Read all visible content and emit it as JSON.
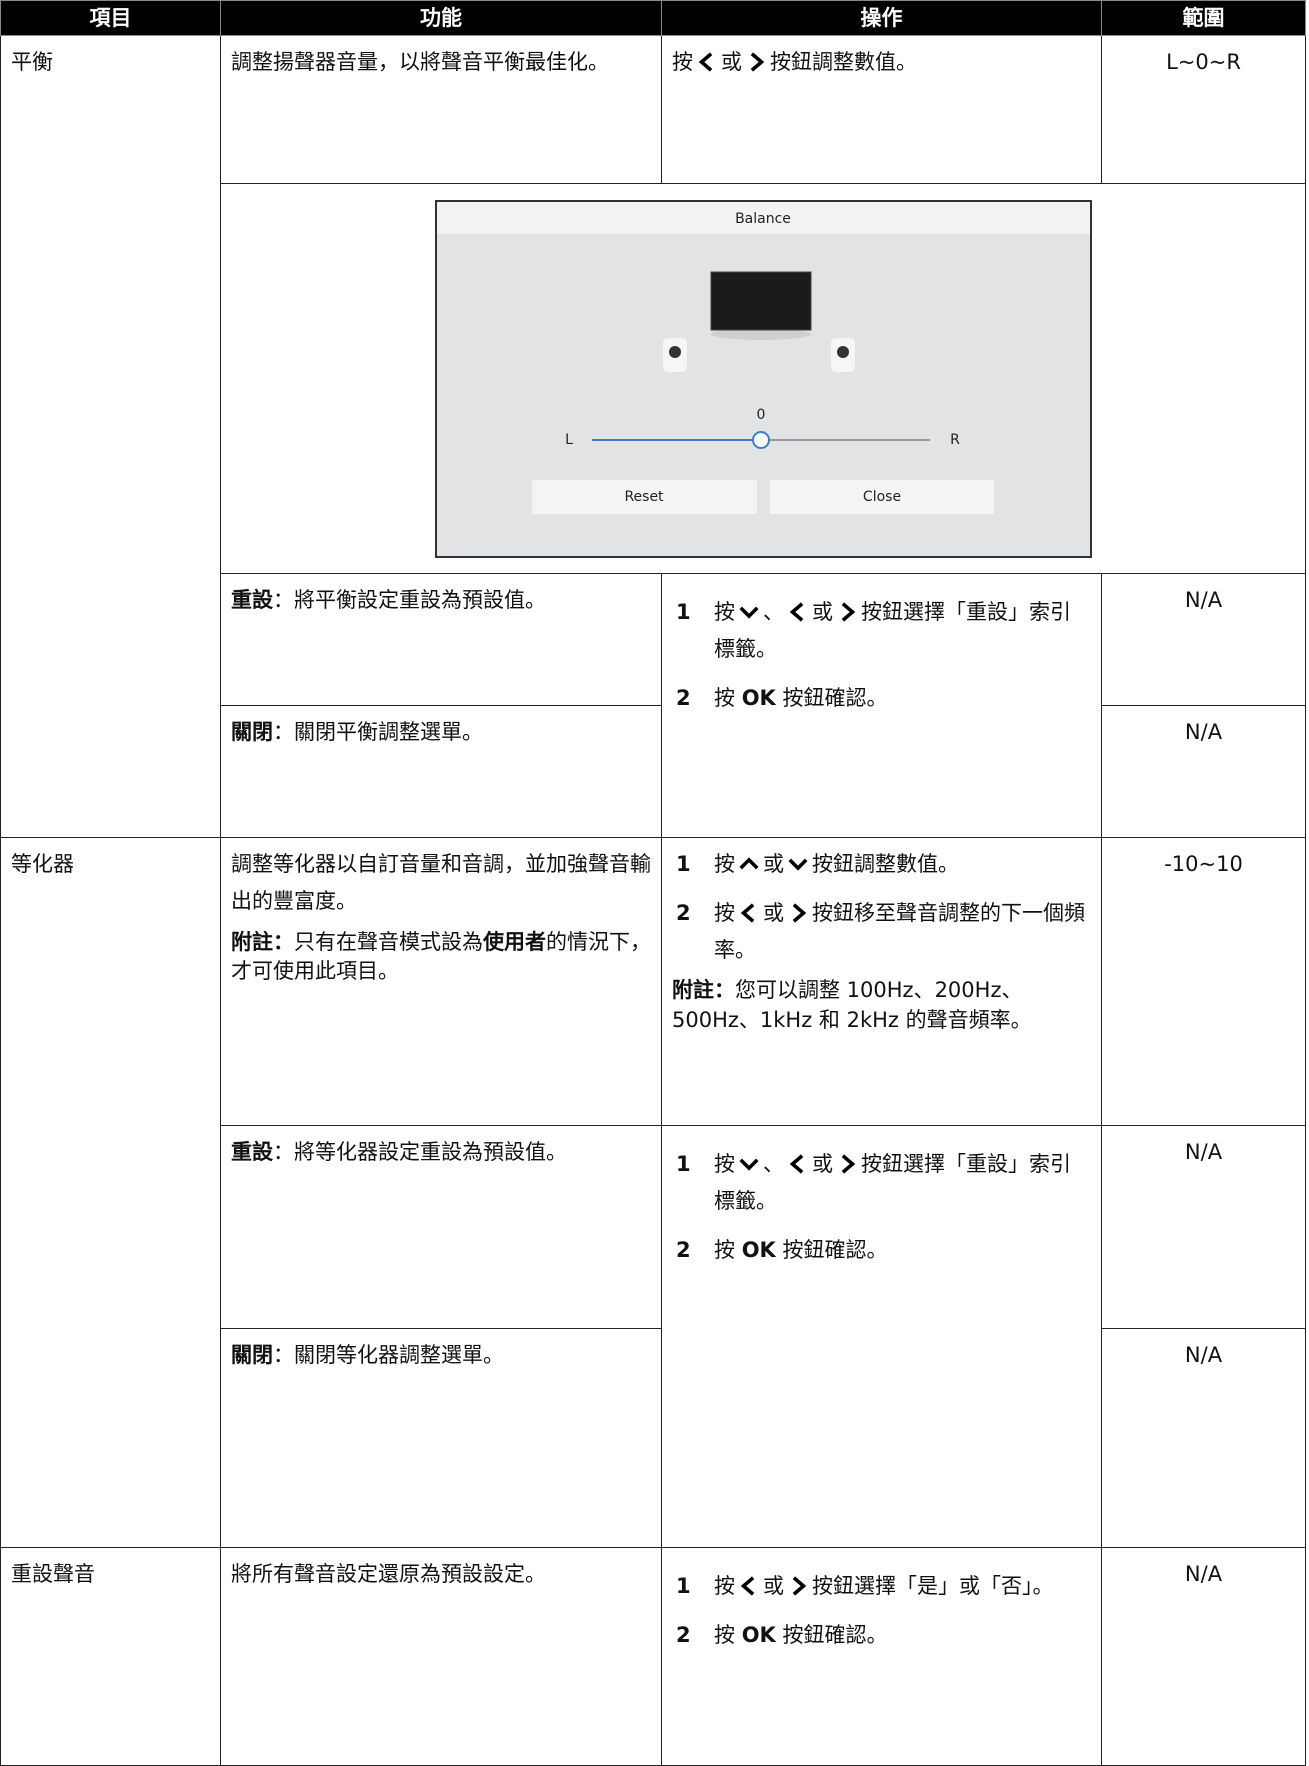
{
  "header": {
    "item": "項目",
    "function": "功能",
    "operation": "操作",
    "range": "範圍"
  },
  "balance": {
    "item": "平衡",
    "function": "調整揚聲器音量，以將聲音平衡最佳化。",
    "operation": [
      "按",
      "或",
      "按鈕調整數值。"
    ],
    "range": "L~0~R",
    "dialog": {
      "title": "Balance",
      "value": 0,
      "left": "L",
      "right": "R",
      "reset": "Reset",
      "close": "Close"
    },
    "reset": {
      "label": "重設",
      "text": "：將平衡設定重設為預設值。",
      "range": "N/A"
    },
    "close": {
      "label": "關閉",
      "text": "：關閉平衡調整選單。",
      "range": "N/A"
    },
    "steps": [
      {
        "number": "1",
        "parts": [
          "按",
          "、",
          "或",
          "按鈕選擇「重設」索引標籤。"
        ]
      },
      {
        "number": "2",
        "parts": [
          "按",
          "OK",
          "按鈕確認。"
        ]
      }
    ]
  },
  "equalizer": {
    "item": "等化器",
    "function": "調整等化器以自訂音量和音調，並加強聲音輸出的豐富度。",
    "note": {
      "label": "附註：",
      "text": "只有在聲音模式設為",
      "bold": "使用者",
      "tail": "的情況下，才可使用此項目。"
    },
    "steps": [
      {
        "number": "1",
        "parts": [
          "按",
          "或",
          "按鈕調整數值。"
        ]
      },
      {
        "number": "2",
        "parts": [
          "按",
          "或",
          "按鈕移至聲音調整的下一個頻率。"
        ]
      }
    ],
    "op_note": {
      "label": "附註：",
      "text": "您可以調整 100Hz、200Hz、500Hz、1kHz 和 2kHz 的聲音頻率。"
    },
    "range": "-10~10",
    "reset": {
      "label": "重設",
      "text": "：將等化器設定重設為預設值。",
      "range": "N/A"
    },
    "close": {
      "label": "關閉",
      "text": "：關閉等化器調整選單。",
      "range": "N/A"
    },
    "reset_steps": [
      {
        "number": "1",
        "parts": [
          "按",
          "、",
          "或",
          "按鈕選擇「重設」索引標籤。"
        ]
      },
      {
        "number": "2",
        "parts": [
          "按",
          "OK",
          "按鈕確認。"
        ]
      }
    ]
  },
  "reset_sound": {
    "item": "重設聲音",
    "function": "將所有聲音設定還原為預設設定。",
    "steps": [
      {
        "number": "1",
        "parts": [
          "按",
          "或",
          "按鈕選擇「是」或「否」。"
        ]
      },
      {
        "number": "2",
        "parts": [
          "按",
          "OK",
          "按鈕確認。"
        ]
      }
    ],
    "range": "N/A"
  }
}
